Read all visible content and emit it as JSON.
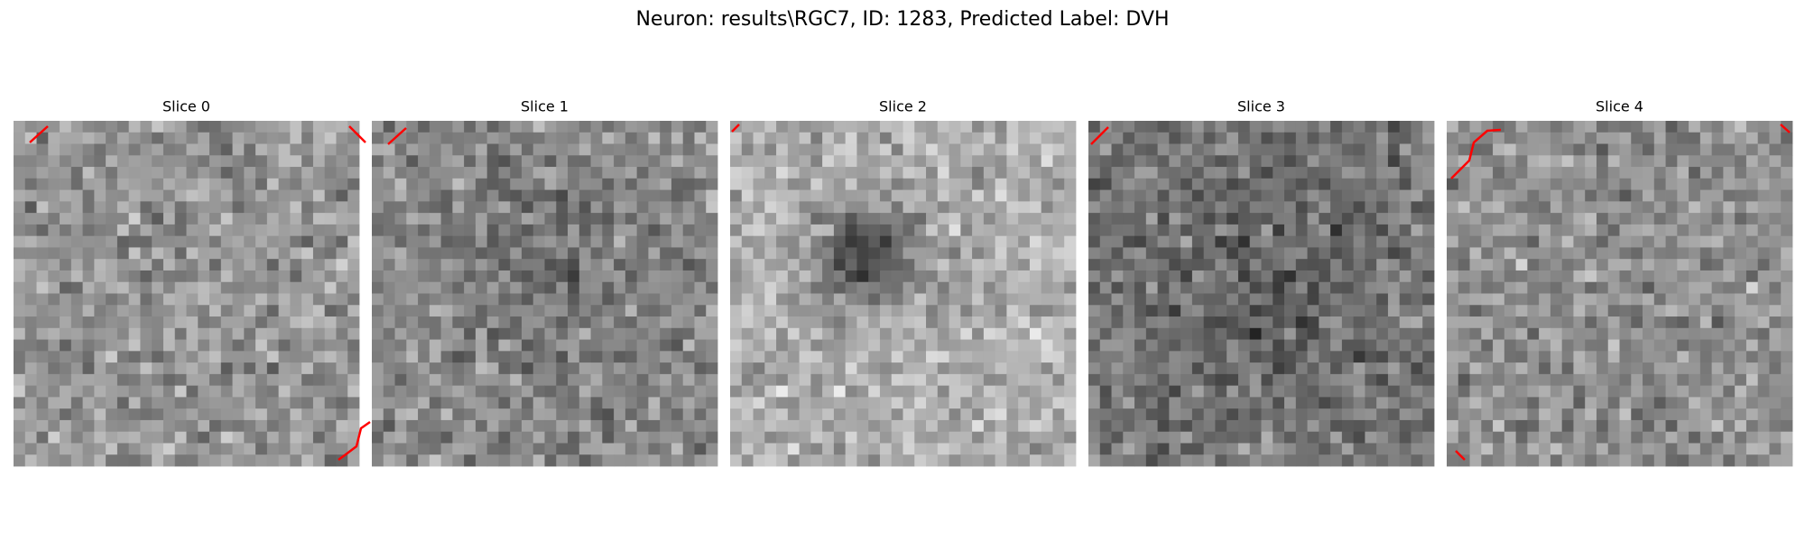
{
  "title": "Neuron: results\\RGC7, ID: 1283, Predicted Label: DVH",
  "panels": [
    {
      "title": "Slice 0"
    },
    {
      "title": "Slice 1"
    },
    {
      "title": "Slice 2"
    },
    {
      "title": "Slice 3"
    },
    {
      "title": "Slice 4"
    }
  ]
}
